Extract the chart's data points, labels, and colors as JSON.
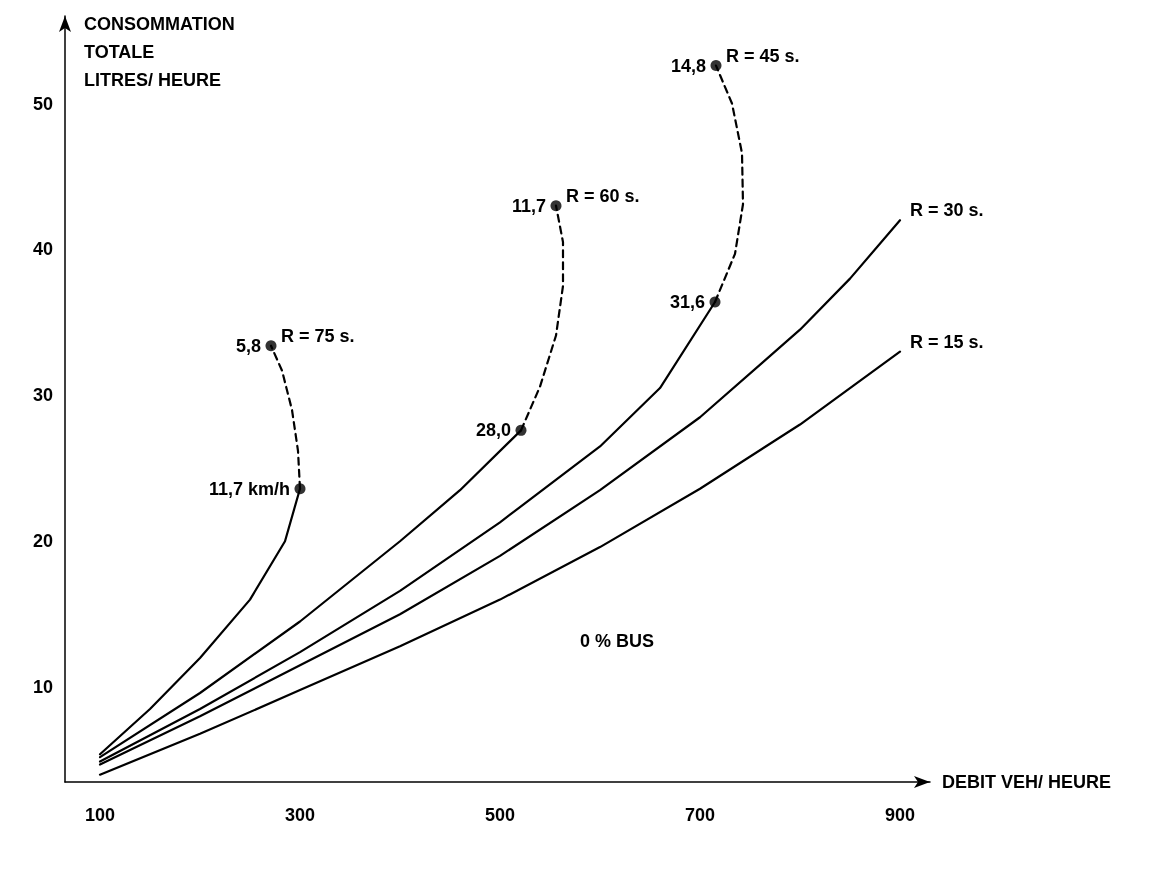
{
  "chart_data": {
    "type": "line",
    "xlabel": "DEBIT VEH/ HEURE",
    "ylabel": "CONSOMMATION\nTOTALE\nLITRES/ HEURE",
    "xlim": [
      65,
      930
    ],
    "xticks": [
      100,
      300,
      500,
      700,
      900
    ],
    "ylim": [
      3.5,
      56
    ],
    "yticks": [
      10,
      20,
      30,
      40,
      50
    ],
    "grid": false,
    "legend": false,
    "marker": "none",
    "series": [
      {
        "color": "#000000",
        "line_style": "solid",
        "x": [
          100,
          150,
          200,
          250,
          285,
          300
        ],
        "values": [
          5.4,
          8.5,
          12,
          16,
          20,
          23.6
        ]
      },
      {
        "name": "R = 75 s.",
        "color": "#000000",
        "line_style": "dashed",
        "x": [
          300,
          298,
          292,
          282,
          271
        ],
        "values": [
          23.6,
          26.2,
          29,
          31.7,
          33.4
        ]
      },
      {
        "color": "#000000",
        "line_style": "solid",
        "x": [
          100,
          200,
          300,
          400,
          460,
          521
        ],
        "values": [
          5.2,
          9.6,
          14.5,
          20,
          23.5,
          27.6
        ]
      },
      {
        "name": "R = 60 s.",
        "color": "#000000",
        "line_style": "dashed",
        "x": [
          521,
          540,
          556,
          563,
          563,
          556
        ],
        "values": [
          27.6,
          30.6,
          34.1,
          37.5,
          40.5,
          43
        ]
      },
      {
        "color": "#000000",
        "line_style": "solid",
        "x": [
          100,
          200,
          300,
          400,
          500,
          600,
          660,
          715
        ],
        "values": [
          4.9,
          8.5,
          12.4,
          16.6,
          21.3,
          26.5,
          30.5,
          36.4
        ]
      },
      {
        "name": "R = 45 s.",
        "color": "#000000",
        "line_style": "dashed",
        "x": [
          715,
          735,
          743,
          742,
          732,
          716
        ],
        "values": [
          36.4,
          39.7,
          43.1,
          46.6,
          50,
          52.6
        ]
      },
      {
        "name": "R = 30 s.",
        "color": "#000000",
        "line_style": "solid",
        "x": [
          100,
          200,
          300,
          400,
          500,
          600,
          700,
          800,
          850,
          900
        ],
        "values": [
          4.7,
          8,
          11.5,
          15,
          19,
          23.5,
          28.5,
          34.5,
          38,
          42
        ]
      },
      {
        "name": "R = 15 s.",
        "color": "#000000",
        "line_style": "solid",
        "x": [
          100,
          200,
          300,
          400,
          500,
          600,
          700,
          800,
          900
        ],
        "values": [
          4,
          6.8,
          9.8,
          12.8,
          16,
          19.6,
          23.6,
          28,
          33
        ]
      },
      {
        "type": "scatter",
        "marker": "circle",
        "color": "#000000",
        "x": [
          271,
          300,
          556,
          521,
          716,
          715
        ],
        "values": [
          33.4,
          23.6,
          43,
          27.6,
          52.6,
          36.4
        ]
      }
    ],
    "annotations": [
      {
        "text": "5,8",
        "x": 271,
        "y": 33.4
      },
      {
        "text": "11,7 km/h",
        "x": 300,
        "y": 23.6
      },
      {
        "text": "11,7",
        "x": 556,
        "y": 43
      },
      {
        "text": "28,0",
        "x": 521,
        "y": 27.6
      },
      {
        "text": "14,8",
        "x": 716,
        "y": 52.6
      },
      {
        "text": "31,6",
        "x": 715,
        "y": 36.4
      },
      "0 % BUS"
    ]
  }
}
